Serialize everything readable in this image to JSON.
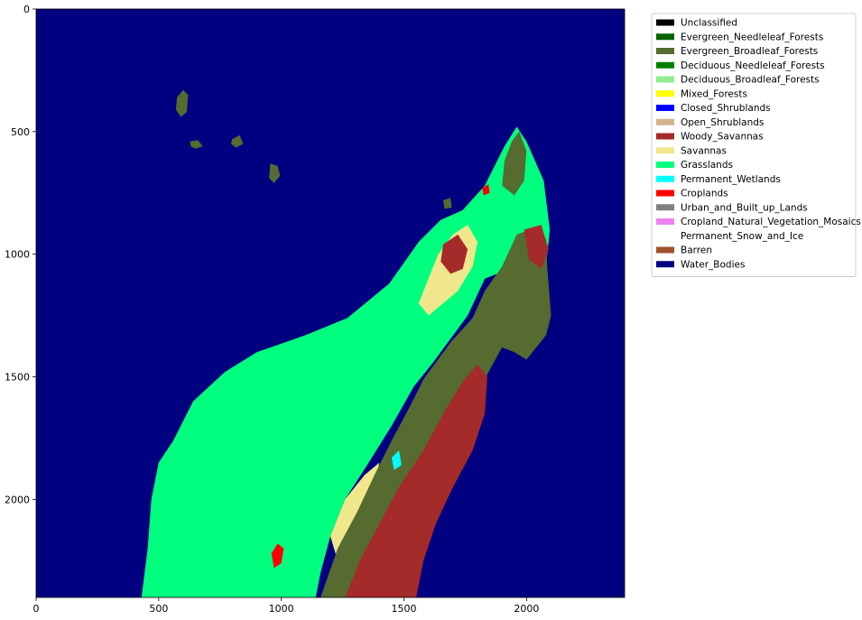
{
  "chart_data": {
    "type": "heatmap",
    "title": "",
    "xlabel": "",
    "ylabel": "",
    "xlim": [
      0,
      2400
    ],
    "ylim": [
      2400,
      0
    ],
    "xticks": [
      0,
      500,
      1000,
      1500,
      2000
    ],
    "yticks": [
      0,
      500,
      1000,
      1500,
      2000
    ],
    "legend_placement": "upper-right-outside",
    "classes": [
      {
        "name": "Unclassified",
        "color": "#000000"
      },
      {
        "name": "Evergreen_Needleleaf_Forests",
        "color": "#006400"
      },
      {
        "name": "Evergreen_Broadleaf_Forests",
        "color": "#556b2f"
      },
      {
        "name": "Deciduous_Needleleaf_Forests",
        "color": "#008000"
      },
      {
        "name": "Deciduous_Broadleaf_Forests",
        "color": "#90ee90"
      },
      {
        "name": "Mixed_Forests",
        "color": "#ffff00"
      },
      {
        "name": "Closed_Shrublands",
        "color": "#0000ff"
      },
      {
        "name": "Open_Shrublands",
        "color": "#d2b48c"
      },
      {
        "name": "Woody_Savannas",
        "color": "#a52a2a"
      },
      {
        "name": "Savannas",
        "color": "#f0e68c"
      },
      {
        "name": "Grasslands",
        "color": "#00ff7f"
      },
      {
        "name": "Permanent_Wetlands",
        "color": "#00ffff"
      },
      {
        "name": "Croplands",
        "color": "#ff0000"
      },
      {
        "name": "Urban_and_Built_up_Lands",
        "color": "#808080"
      },
      {
        "name": "Cropland_Natural_Vegetation_Mosaics",
        "color": "#ee82ee"
      },
      {
        "name": "Permanent_Snow_and_Ice",
        "color": "#ffffff"
      },
      {
        "name": "Barren",
        "color": "#a0522d"
      },
      {
        "name": "Water_Bodies",
        "color": "#000080"
      }
    ],
    "regions": [
      {
        "class": "Grasslands",
        "points": [
          [
            430,
            2400
          ],
          [
            455,
            2200
          ],
          [
            470,
            2000
          ],
          [
            500,
            1850
          ],
          [
            560,
            1760
          ],
          [
            640,
            1600
          ],
          [
            770,
            1480
          ],
          [
            900,
            1400
          ],
          [
            1100,
            1330
          ],
          [
            1270,
            1260
          ],
          [
            1440,
            1120
          ],
          [
            1560,
            950
          ],
          [
            1650,
            860
          ],
          [
            1740,
            820
          ],
          [
            1830,
            720
          ],
          [
            1870,
            640
          ],
          [
            1910,
            560
          ],
          [
            1960,
            480
          ],
          [
            2000,
            540
          ],
          [
            2070,
            700
          ],
          [
            2095,
            900
          ],
          [
            2085,
            1000
          ],
          [
            1830,
            1100
          ],
          [
            1760,
            1250
          ],
          [
            1620,
            1440
          ],
          [
            1540,
            1540
          ],
          [
            1450,
            1700
          ],
          [
            1350,
            1860
          ],
          [
            1260,
            2000
          ],
          [
            1200,
            2150
          ],
          [
            1160,
            2300
          ],
          [
            1140,
            2400
          ]
        ]
      },
      {
        "class": "Savannas",
        "points": [
          [
            1640,
            1000
          ],
          [
            1700,
            920
          ],
          [
            1760,
            880
          ],
          [
            1800,
            950
          ],
          [
            1780,
            1050
          ],
          [
            1720,
            1150
          ],
          [
            1660,
            1200
          ],
          [
            1600,
            1250
          ],
          [
            1560,
            1200
          ],
          [
            1600,
            1100
          ]
        ]
      },
      {
        "class": "Savannas",
        "points": [
          [
            1200,
            2150
          ],
          [
            1260,
            2000
          ],
          [
            1340,
            1900
          ],
          [
            1400,
            1850
          ],
          [
            1380,
            1950
          ],
          [
            1320,
            2050
          ],
          [
            1270,
            2150
          ],
          [
            1230,
            2250
          ]
        ]
      },
      {
        "class": "Evergreen_Broadleaf_Forests",
        "points": [
          [
            1160,
            2400
          ],
          [
            1230,
            2200
          ],
          [
            1310,
            2050
          ],
          [
            1380,
            1900
          ],
          [
            1450,
            1760
          ],
          [
            1520,
            1630
          ],
          [
            1580,
            1510
          ],
          [
            1690,
            1360
          ],
          [
            1780,
            1260
          ],
          [
            1830,
            1150
          ],
          [
            1900,
            1050
          ],
          [
            1960,
            920
          ],
          [
            2040,
            890
          ],
          [
            2080,
            940
          ],
          [
            2085,
            1060
          ],
          [
            2100,
            1250
          ],
          [
            2080,
            1330
          ],
          [
            2000,
            1430
          ],
          [
            1950,
            1400
          ],
          [
            1900,
            1380
          ],
          [
            1840,
            1490
          ],
          [
            1780,
            1630
          ],
          [
            1730,
            1760
          ],
          [
            1660,
            1900
          ],
          [
            1600,
            2050
          ],
          [
            1560,
            2250
          ],
          [
            1540,
            2400
          ]
        ]
      },
      {
        "class": "Evergreen_Broadleaf_Forests",
        "points": [
          [
            1940,
            540
          ],
          [
            1970,
            500
          ],
          [
            2000,
            580
          ],
          [
            1990,
            700
          ],
          [
            1950,
            760
          ],
          [
            1900,
            720
          ],
          [
            1910,
            620
          ]
        ]
      },
      {
        "class": "Woody_Savannas",
        "points": [
          [
            1260,
            2400
          ],
          [
            1320,
            2250
          ],
          [
            1400,
            2100
          ],
          [
            1480,
            1950
          ],
          [
            1580,
            1800
          ],
          [
            1660,
            1650
          ],
          [
            1740,
            1520
          ],
          [
            1800,
            1450
          ],
          [
            1840,
            1500
          ],
          [
            1830,
            1650
          ],
          [
            1780,
            1800
          ],
          [
            1700,
            1950
          ],
          [
            1630,
            2100
          ],
          [
            1580,
            2250
          ],
          [
            1550,
            2400
          ]
        ]
      },
      {
        "class": "Woody_Savannas",
        "points": [
          [
            1660,
            960
          ],
          [
            1720,
            920
          ],
          [
            1760,
            980
          ],
          [
            1740,
            1060
          ],
          [
            1690,
            1080
          ],
          [
            1650,
            1030
          ]
        ]
      },
      {
        "class": "Woody_Savannas",
        "points": [
          [
            1990,
            900
          ],
          [
            2060,
            880
          ],
          [
            2090,
            980
          ],
          [
            2060,
            1060
          ],
          [
            2010,
            1020
          ]
        ]
      },
      {
        "class": "Croplands",
        "points": [
          [
            960,
            2220
          ],
          [
            985,
            2180
          ],
          [
            1010,
            2200
          ],
          [
            1000,
            2260
          ],
          [
            970,
            2280
          ]
        ]
      },
      {
        "class": "Croplands",
        "points": [
          [
            1820,
            730
          ],
          [
            1845,
            715
          ],
          [
            1850,
            750
          ],
          [
            1825,
            760
          ]
        ]
      },
      {
        "class": "Permanent_Wetlands",
        "points": [
          [
            1450,
            1830
          ],
          [
            1480,
            1800
          ],
          [
            1490,
            1860
          ],
          [
            1460,
            1880
          ]
        ]
      },
      {
        "class": "Evergreen_Broadleaf_Forests",
        "points": [
          [
            575,
            360
          ],
          [
            600,
            330
          ],
          [
            620,
            350
          ],
          [
            615,
            420
          ],
          [
            590,
            440
          ],
          [
            570,
            410
          ]
        ]
      },
      {
        "class": "Evergreen_Broadleaf_Forests",
        "points": [
          [
            800,
            530
          ],
          [
            830,
            515
          ],
          [
            845,
            550
          ],
          [
            815,
            565
          ],
          [
            795,
            550
          ]
        ]
      },
      {
        "class": "Evergreen_Broadleaf_Forests",
        "points": [
          [
            628,
            540
          ],
          [
            660,
            535
          ],
          [
            680,
            560
          ],
          [
            650,
            570
          ],
          [
            630,
            560
          ]
        ]
      },
      {
        "class": "Evergreen_Broadleaf_Forests",
        "points": [
          [
            955,
            630
          ],
          [
            985,
            640
          ],
          [
            995,
            680
          ],
          [
            970,
            710
          ],
          [
            950,
            690
          ]
        ]
      },
      {
        "class": "Evergreen_Broadleaf_Forests",
        "points": [
          [
            1660,
            780
          ],
          [
            1690,
            770
          ],
          [
            1695,
            810
          ],
          [
            1665,
            815
          ]
        ]
      }
    ]
  }
}
